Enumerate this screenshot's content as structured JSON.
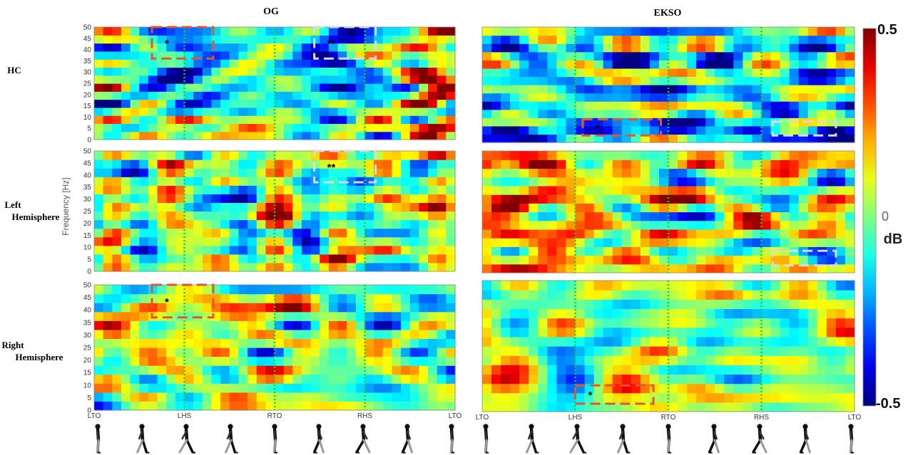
{
  "chart_data": {
    "type": "heatmap",
    "columns": [
      "OG",
      "EKSO"
    ],
    "rows": [
      "HC",
      "Left Hemisphere",
      "Right Hemisphere"
    ],
    "ylabel": "Frequency [Hz]",
    "ylim": [
      0,
      50
    ],
    "y_ticks": [
      0,
      5,
      10,
      15,
      20,
      25,
      30,
      35,
      40,
      45,
      50
    ],
    "x_ticks": [
      "LTO",
      "LHS",
      "RTO",
      "RHS",
      "LTO"
    ],
    "x_tick_display": {
      "OG": [
        "LTO",
        "LHS",
        "RTO",
        "RHS",
        "LTO"
      ],
      "EKSO": [
        "LTO",
        "LHS",
        "RTO",
        "RHS",
        "LTO"
      ]
    },
    "gait_events_fraction": {
      "OG": [
        0.0,
        0.25,
        0.5,
        0.75,
        1.0
      ],
      "EKSO": [
        0.0,
        0.25,
        0.5,
        0.75,
        1.0
      ]
    },
    "colorbar": {
      "unit": "dB",
      "max_label": "0.5",
      "mid_label": "0",
      "min_label": "-0.5",
      "range": [
        -0.5,
        0.5
      ],
      "colormap": "jet"
    },
    "grid": false,
    "event_line_color": "#22cc22",
    "significance_boxes": [
      {
        "column": "OG",
        "row": "HC",
        "label": "*",
        "color": "#e8552b",
        "x_range": [
          0.16,
          0.33
        ],
        "y_range": [
          36,
          50
        ]
      },
      {
        "column": "OG",
        "row": "HC",
        "label": "**",
        "color": "#d9d9e6",
        "x_range": [
          0.61,
          0.78
        ],
        "y_range": [
          36,
          50
        ]
      },
      {
        "column": "OG",
        "row": "Left Hemisphere",
        "label": "**",
        "color": "#d9d9e6",
        "x_range": [
          0.61,
          0.78
        ],
        "y_range": [
          37,
          50
        ]
      },
      {
        "column": "OG",
        "row": "Right Hemisphere",
        "label": "*",
        "color": "#e8552b",
        "x_range": [
          0.16,
          0.33
        ],
        "y_range": [
          37,
          50
        ]
      },
      {
        "column": "EKSO",
        "row": "HC",
        "label": "*",
        "color": "#e8552b",
        "x_range": [
          0.27,
          0.48
        ],
        "y_range": [
          3,
          10
        ]
      },
      {
        "column": "EKSO",
        "row": "HC",
        "label": "",
        "color": "#d9d9e6",
        "x_range": [
          0.78,
          0.95
        ],
        "y_range": [
          3,
          9
        ]
      },
      {
        "column": "EKSO",
        "row": "Left Hemisphere",
        "label": "",
        "color": "#d9d9e6",
        "x_range": [
          0.78,
          0.95
        ],
        "y_range": [
          3,
          9
        ]
      },
      {
        "column": "EKSO",
        "row": "Right Hemisphere",
        "label": "*",
        "color": "#e8552b",
        "x_range": [
          0.25,
          0.46
        ],
        "y_range": [
          3,
          10
        ]
      }
    ],
    "gait_figures": {
      "count_per_panel": 9,
      "icon": "walking-person-icon"
    }
  }
}
